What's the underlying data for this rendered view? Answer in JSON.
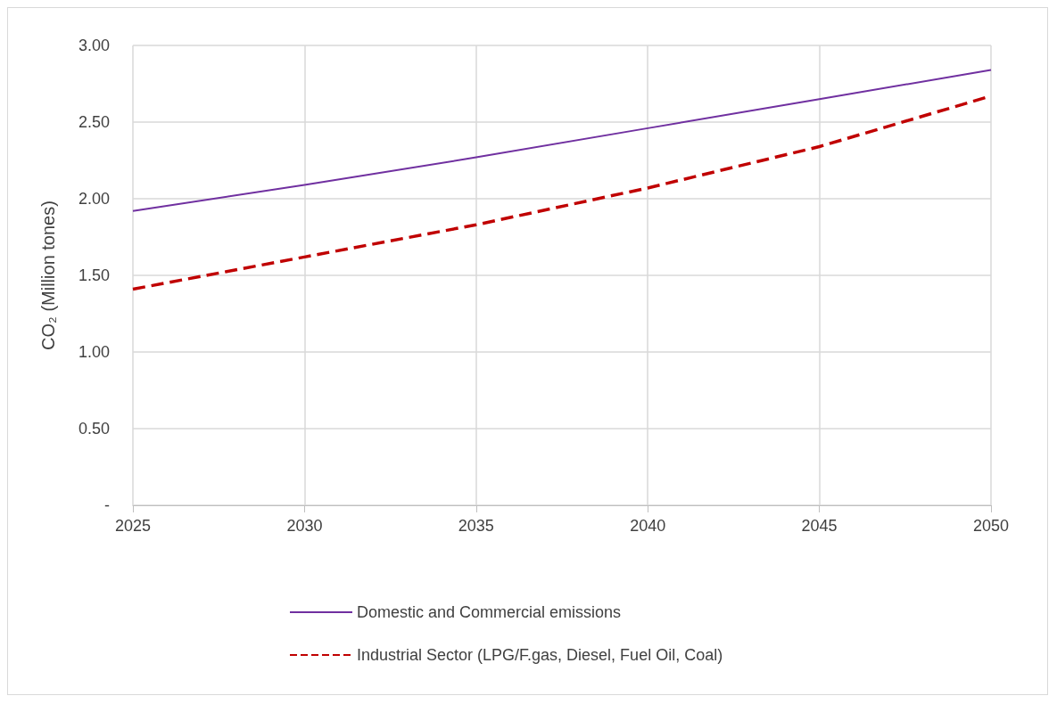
{
  "chart_data": {
    "type": "line",
    "ylabel": "CO₂ (Million tones)",
    "x": [
      2025,
      2030,
      2035,
      2040,
      2045,
      2050
    ],
    "xlim": [
      2025,
      2050
    ],
    "xticks": [
      2025,
      2030,
      2035,
      2040,
      2045,
      2050
    ],
    "ylim": [
      0,
      3
    ],
    "yticks": [
      {
        "value": 0,
        "label": "-"
      },
      {
        "value": 0.5,
        "label": "0.50"
      },
      {
        "value": 1,
        "label": "1.00"
      },
      {
        "value": 1.5,
        "label": "1.50"
      },
      {
        "value": 2,
        "label": "2.00"
      },
      {
        "value": 2.5,
        "label": "2.50"
      },
      {
        "value": 3,
        "label": "3.00"
      }
    ],
    "grid": true,
    "legend": "bottom",
    "marker": "none",
    "series": [
      {
        "name": "Domestic and Commercial emissions",
        "color": "#7030a0",
        "line_style": "solid",
        "values": [
          1.92,
          2.09,
          2.27,
          2.46,
          2.65,
          2.84
        ]
      },
      {
        "name": "Industrial Sector (LPG/F.gas, Diesel, Fuel Oil, Coal)",
        "color": "#c00000",
        "line_style": "dashed",
        "values": [
          1.41,
          1.62,
          1.83,
          2.07,
          2.34,
          2.67
        ]
      }
    ]
  }
}
